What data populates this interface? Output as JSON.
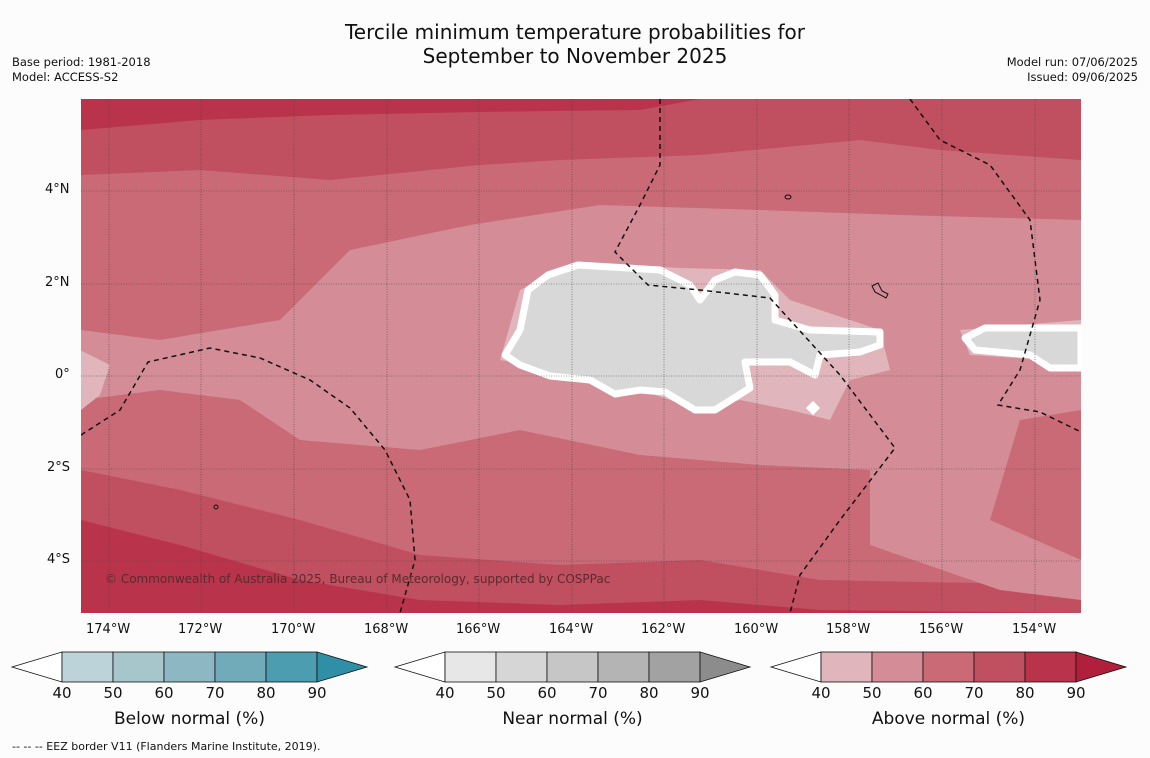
{
  "title_line1": "Tercile minimum temperature probabilities for",
  "title_line2": "September to November 2025",
  "base_period": "Base period: 1981-2018",
  "model": "Model: ACCESS-S2",
  "model_run": "Model run: 07/06/2025",
  "issued": "Issued: 09/06/2025",
  "copyright": "© Commonwealth of Australia 2025, Bureau of Meteorology, supported by COSPPac",
  "footnote": "--  --  -- EEZ border V11 (Flanders Marine Institute, 2019).",
  "lon_labels": [
    "174°W",
    "172°W",
    "170°W",
    "168°W",
    "166°W",
    "164°W",
    "162°W",
    "160°W",
    "158°W",
    "156°W",
    "154°W"
  ],
  "lat_labels": [
    "4°N",
    "2°N",
    "0°",
    "2°S",
    "4°S"
  ],
  "colorbars": [
    {
      "title": "Below normal (%)",
      "ticks": [
        "40",
        "50",
        "60",
        "70",
        "80",
        "90"
      ],
      "colors": [
        "#bcd3da",
        "#a6c6cc",
        "#8db8c3",
        "#71abb9",
        "#4b9daf",
        "#2f8fa6"
      ]
    },
    {
      "title": "Near normal (%)",
      "ticks": [
        "40",
        "50",
        "60",
        "70",
        "80",
        "90"
      ],
      "colors": [
        "#e7e7e7",
        "#d6d6d6",
        "#c6c6c6",
        "#b4b4b4",
        "#a2a2a2",
        "#8c8c8c"
      ]
    },
    {
      "title": "Above normal (%)",
      "ticks": [
        "40",
        "50",
        "60",
        "70",
        "80",
        "90"
      ],
      "colors": [
        "#e0b6bc",
        "#d48d97",
        "#c96a76",
        "#c0505f",
        "#b9344b",
        "#b01f3b"
      ]
    }
  ]
}
